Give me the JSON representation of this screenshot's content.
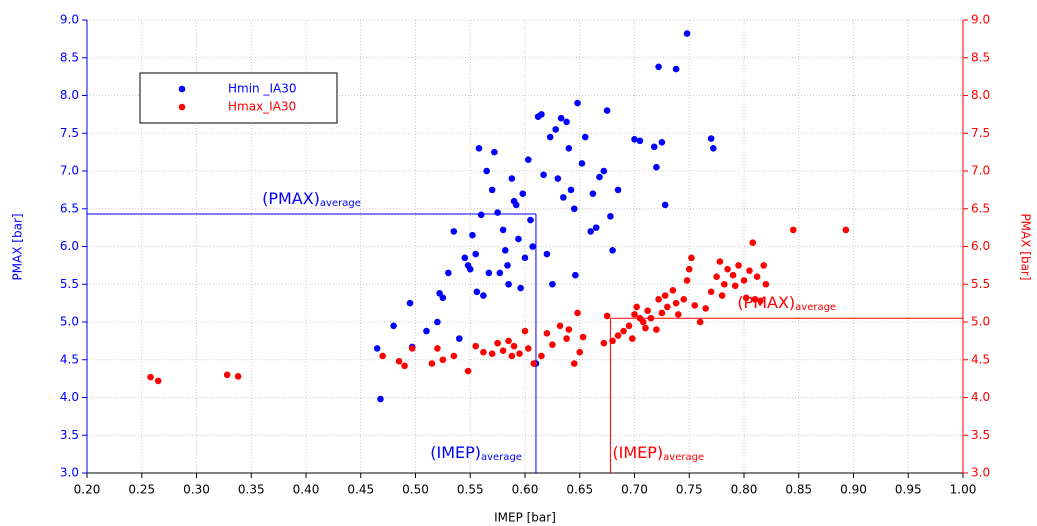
{
  "chart_data": {
    "type": "scatter",
    "xlabel": "IMEP [bar]",
    "ylabel": "PMAX [bar]",
    "y2label": "PMAX [bar]",
    "ylabel_color": "#0000ff",
    "y2label_color": "#ff0000",
    "xlim": [
      0.2,
      1.0
    ],
    "ylim": [
      3.0,
      9.0
    ],
    "y2lim": [
      3.0,
      9.0
    ],
    "grid": true,
    "legend": "upper left",
    "xticks": [
      {
        "value": 0.2,
        "label": "0.20"
      },
      {
        "value": 0.25,
        "label": "0.25"
      },
      {
        "value": 0.3,
        "label": "0.30"
      },
      {
        "value": 0.35,
        "label": "0.35"
      },
      {
        "value": 0.4,
        "label": "0.40"
      },
      {
        "value": 0.45,
        "label": "0.45"
      },
      {
        "value": 0.5,
        "label": "0.50"
      },
      {
        "value": 0.55,
        "label": "0.55"
      },
      {
        "value": 0.6,
        "label": "0.60"
      },
      {
        "value": 0.65,
        "label": "0.65"
      },
      {
        "value": 0.7,
        "label": "0.70"
      },
      {
        "value": 0.75,
        "label": "0.75"
      },
      {
        "value": 0.8,
        "label": "0.80"
      },
      {
        "value": 0.85,
        "label": "0.85"
      },
      {
        "value": 0.9,
        "label": "0.90"
      },
      {
        "value": 0.95,
        "label": "0.95"
      },
      {
        "value": 1.0,
        "label": "1.00"
      }
    ],
    "yticks": [
      {
        "value": 3,
        "label": "3.0"
      },
      3.5,
      {
        "value": 4,
        "label": "4.0"
      },
      4.5,
      {
        "value": 5,
        "label": "5.0"
      },
      5.5,
      {
        "value": 6,
        "label": "6.0"
      },
      6.5,
      {
        "value": 7,
        "label": "7.0"
      },
      7.5,
      {
        "value": 8,
        "label": "8.0"
      },
      8.5,
      {
        "value": 9,
        "label": "9.0"
      }
    ],
    "y2ticks": [
      {
        "value": 3,
        "label": "3.0"
      },
      3.5,
      {
        "value": 4,
        "label": "4.0"
      },
      4.5,
      {
        "value": 5,
        "label": "5.0"
      },
      5.5,
      {
        "value": 6,
        "label": "6.0"
      },
      6.5,
      {
        "value": 7,
        "label": "7.0"
      },
      7.5,
      {
        "value": 8,
        "label": "8.0"
      },
      8.5,
      {
        "value": 9,
        "label": "9.0"
      }
    ],
    "series": [
      {
        "name": "Hmin _IA30",
        "color": "#0000ff",
        "x": [
          0.465,
          0.468,
          0.48,
          0.495,
          0.497,
          0.51,
          0.52,
          0.522,
          0.525,
          0.53,
          0.535,
          0.54,
          0.545,
          0.548,
          0.55,
          0.552,
          0.555,
          0.556,
          0.558,
          0.56,
          0.562,
          0.565,
          0.567,
          0.57,
          0.572,
          0.575,
          0.577,
          0.58,
          0.582,
          0.584,
          0.585,
          0.588,
          0.59,
          0.592,
          0.594,
          0.596,
          0.598,
          0.6,
          0.603,
          0.605,
          0.607,
          0.61,
          0.612,
          0.615,
          0.617,
          0.62,
          0.623,
          0.625,
          0.628,
          0.63,
          0.633,
          0.635,
          0.638,
          0.64,
          0.642,
          0.645,
          0.646,
          0.648,
          0.652,
          0.655,
          0.66,
          0.662,
          0.665,
          0.668,
          0.672,
          0.675,
          0.678,
          0.68,
          0.685,
          0.7,
          0.705,
          0.718,
          0.72,
          0.722,
          0.725,
          0.728,
          0.738,
          0.748,
          0.77,
          0.772
        ],
        "values": [
          4.65,
          3.98,
          4.95,
          5.25,
          4.67,
          4.88,
          5.0,
          5.38,
          5.32,
          5.65,
          6.2,
          4.78,
          5.85,
          5.75,
          5.7,
          6.15,
          5.9,
          5.4,
          7.3,
          6.42,
          5.35,
          7.0,
          5.65,
          6.75,
          7.25,
          6.45,
          5.65,
          6.22,
          5.95,
          5.75,
          5.5,
          6.9,
          6.6,
          6.55,
          6.1,
          5.45,
          6.7,
          5.85,
          7.15,
          6.35,
          6.0,
          4.45,
          7.72,
          7.75,
          6.95,
          5.9,
          7.45,
          5.5,
          7.55,
          6.9,
          7.7,
          6.65,
          7.65,
          7.3,
          6.75,
          6.5,
          5.62,
          7.9,
          7.1,
          7.45,
          6.2,
          6.7,
          6.25,
          6.92,
          7.0,
          7.8,
          6.4,
          5.95,
          6.75,
          7.42,
          7.4,
          7.32,
          7.05,
          8.38,
          7.38,
          6.55,
          8.35,
          8.82,
          7.43,
          7.3
        ]
      },
      {
        "name": "Hmax_IA30",
        "color": "#ff0000",
        "axis": "y2",
        "x": [
          0.258,
          0.265,
          0.328,
          0.338,
          0.47,
          0.485,
          0.49,
          0.497,
          0.515,
          0.52,
          0.525,
          0.535,
          0.548,
          0.555,
          0.562,
          0.57,
          0.575,
          0.58,
          0.585,
          0.588,
          0.59,
          0.595,
          0.6,
          0.603,
          0.608,
          0.615,
          0.62,
          0.625,
          0.632,
          0.638,
          0.64,
          0.645,
          0.648,
          0.65,
          0.653,
          0.672,
          0.675,
          0.68,
          0.685,
          0.69,
          0.695,
          0.698,
          0.7,
          0.702,
          0.705,
          0.708,
          0.71,
          0.712,
          0.715,
          0.72,
          0.722,
          0.725,
          0.728,
          0.73,
          0.735,
          0.738,
          0.74,
          0.745,
          0.748,
          0.75,
          0.752,
          0.755,
          0.76,
          0.765,
          0.77,
          0.775,
          0.778,
          0.78,
          0.782,
          0.785,
          0.79,
          0.792,
          0.795,
          0.8,
          0.802,
          0.805,
          0.808,
          0.81,
          0.812,
          0.815,
          0.818,
          0.82,
          0.845,
          0.893
        ],
        "values": [
          4.27,
          4.22,
          4.3,
          4.28,
          4.55,
          4.48,
          4.42,
          4.65,
          4.45,
          4.65,
          4.5,
          4.55,
          4.35,
          4.68,
          4.6,
          4.58,
          4.72,
          4.62,
          4.75,
          4.55,
          4.68,
          4.58,
          4.88,
          4.65,
          4.45,
          4.55,
          4.85,
          4.7,
          4.95,
          4.78,
          4.9,
          4.45,
          5.12,
          4.6,
          4.8,
          4.72,
          5.08,
          4.75,
          4.82,
          4.88,
          4.95,
          4.78,
          5.1,
          5.2,
          5.05,
          5.0,
          4.92,
          5.15,
          5.05,
          4.9,
          5.3,
          5.12,
          5.35,
          5.2,
          5.42,
          5.25,
          5.1,
          5.3,
          5.55,
          5.7,
          5.85,
          5.22,
          5.0,
          5.18,
          5.4,
          5.6,
          5.8,
          5.35,
          5.5,
          5.7,
          5.62,
          5.48,
          5.75,
          5.55,
          5.32,
          5.68,
          6.05,
          5.3,
          5.6,
          5.28,
          5.75,
          5.5,
          6.22,
          6.22
        ]
      }
    ],
    "reference_lines": [
      {
        "color": "#0000ff",
        "x": 0.61,
        "y": 6.43,
        "y_label": "(PMAX)",
        "x_label": "(IMEP)",
        "label_sub": "average"
      },
      {
        "color": "#ff0000",
        "x": 0.678,
        "y": 5.05,
        "y_label": "(PMAX)",
        "x_label": "(IMEP)",
        "label_sub": "average"
      }
    ]
  }
}
